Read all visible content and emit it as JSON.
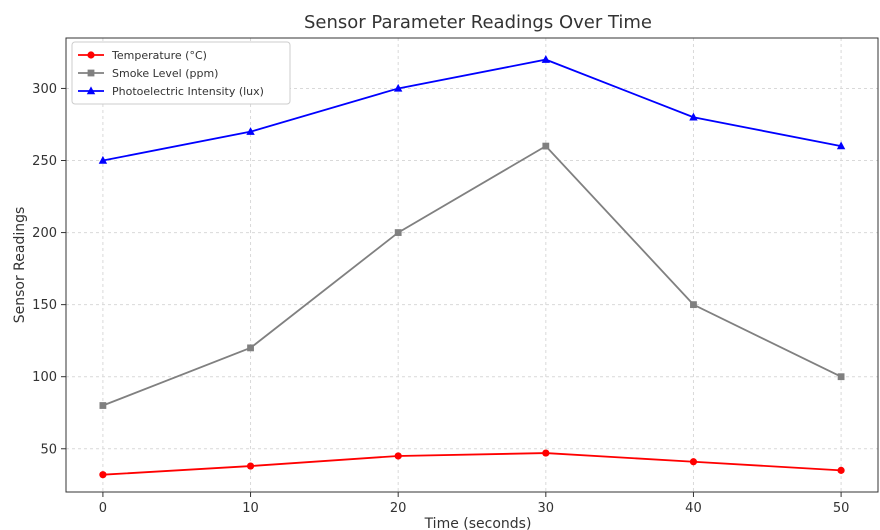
{
  "chart_data": {
    "type": "line",
    "title": "Sensor Parameter Readings Over Time",
    "xlabel": "Time (seconds)",
    "ylabel": "Sensor Readings",
    "x": [
      0,
      10,
      20,
      30,
      40,
      50
    ],
    "xticks": [
      0,
      10,
      20,
      30,
      40,
      50
    ],
    "yticks": [
      50,
      100,
      150,
      200,
      250,
      300
    ],
    "xlim": [
      -2.5,
      52.5
    ],
    "ylim": [
      20,
      335
    ],
    "grid": true,
    "legend_position": "top-left",
    "series": [
      {
        "name": "Temperature (°C)",
        "values": [
          32,
          38,
          45,
          47,
          41,
          35
        ],
        "color": "#ff0000",
        "marker": "circle"
      },
      {
        "name": "Smoke Level (ppm)",
        "values": [
          80,
          120,
          200,
          260,
          150,
          100
        ],
        "color": "#808080",
        "marker": "square"
      },
      {
        "name": "Photoelectric Intensity (lux)",
        "values": [
          250,
          270,
          300,
          320,
          280,
          260
        ],
        "color": "#0000ff",
        "marker": "triangle"
      }
    ]
  }
}
